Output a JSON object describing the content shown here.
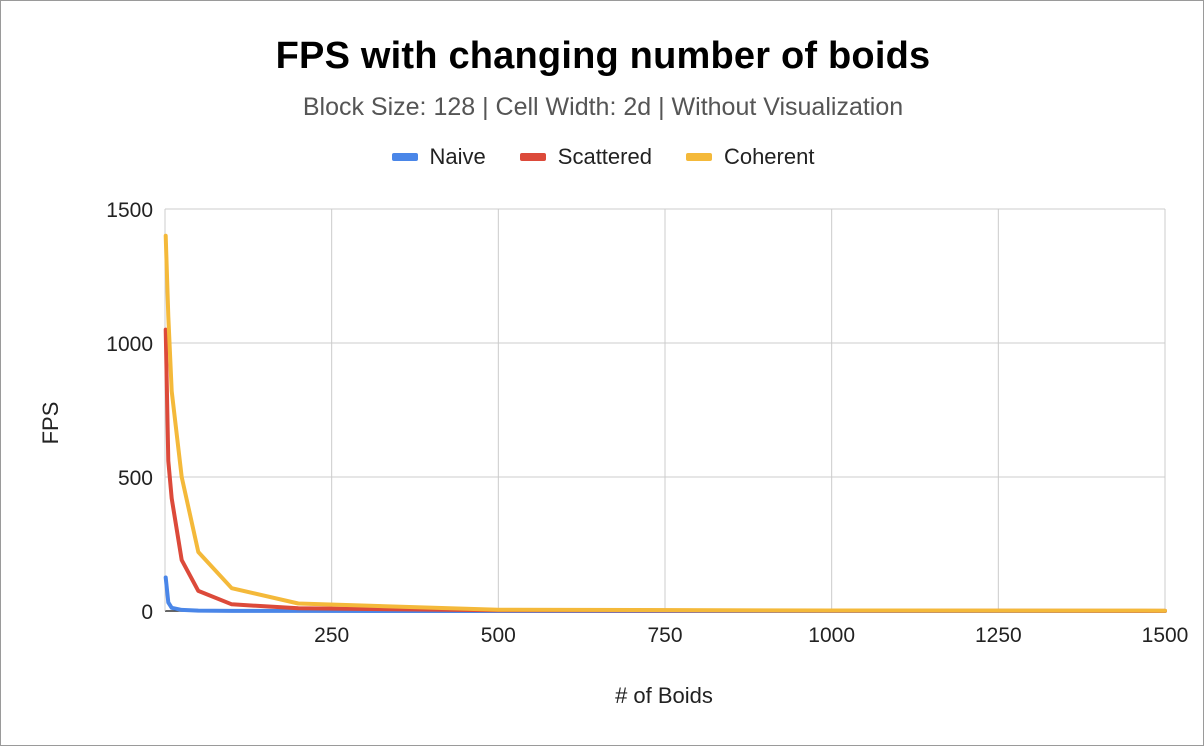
{
  "chart_data": {
    "type": "line",
    "title": "FPS with changing number of boids",
    "subtitle": "Block Size: 128 | Cell Width: 2d | Without Visualization",
    "xlabel": "# of Boids",
    "ylabel": "FPS",
    "xlim": [
      0,
      1500
    ],
    "ylim": [
      0,
      1500
    ],
    "x_ticks": [
      "250",
      "500",
      "750",
      "1000",
      "1250",
      "1500"
    ],
    "y_ticks": [
      "0",
      "500",
      "1000",
      "1500"
    ],
    "grid": true,
    "legend_position": "top",
    "series": [
      {
        "name": "Naive",
        "color": "#4a86e8",
        "x": [
          1,
          5,
          10,
          25,
          50,
          100,
          200,
          500,
          1000,
          1500
        ],
        "y": [
          125,
          32,
          12,
          4,
          1.5,
          0.5,
          0.2,
          0.05,
          0.02,
          0.01
        ]
      },
      {
        "name": "Scattered",
        "color": "#dc4a3a",
        "x": [
          1,
          5,
          10,
          25,
          50,
          100,
          200,
          500,
          1000,
          1500
        ],
        "y": [
          1050,
          560,
          420,
          190,
          75,
          25,
          10,
          3,
          1,
          0.5
        ]
      },
      {
        "name": "Coherent",
        "color": "#f4b93a",
        "x": [
          1,
          5,
          10,
          25,
          50,
          100,
          200,
          500,
          1000,
          1500
        ],
        "y": [
          1400,
          1100,
          820,
          500,
          220,
          85,
          28,
          5,
          2,
          1
        ]
      }
    ]
  }
}
